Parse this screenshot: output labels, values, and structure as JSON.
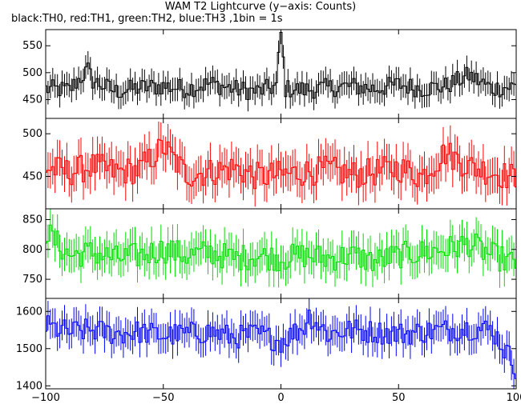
{
  "chart_data": {
    "type": "line",
    "title": "WAM T2 Lightcurve (y−axis: Counts)",
    "subtitle": "black:TH0, red:TH1, green:TH2, blue:TH3 ,1bin = 1s",
    "x_range": [
      -100,
      100
    ],
    "x_ticks": [
      -100,
      -50,
      0,
      50,
      100
    ],
    "bin_seconds": 1,
    "panels": [
      {
        "name": "TH0",
        "color": "#000000",
        "ylim": [
          415,
          580
        ],
        "y_ticks": [
          450,
          500,
          550
        ],
        "x": [
          -100,
          -90,
          -82,
          -80,
          -70,
          -60,
          -50,
          -40,
          -30,
          -20,
          -10,
          -2,
          0,
          2,
          10,
          20,
          30,
          40,
          50,
          60,
          70,
          80,
          90,
          100
        ],
        "values": [
          470,
          468,
          505,
          485,
          465,
          472,
          475,
          470,
          480,
          470,
          465,
          475,
          575,
          470,
          468,
          472,
          475,
          470,
          478,
          470,
          475,
          495,
          470,
          475
        ],
        "errors": [
          22,
          22,
          22,
          22,
          22,
          22,
          22,
          22,
          22,
          22,
          22,
          22,
          22,
          22,
          22,
          22,
          22,
          22,
          22,
          22,
          22,
          22,
          22,
          22
        ]
      },
      {
        "name": "TH1",
        "color": "#ff0000",
        "ylim": [
          412,
          518
        ],
        "y_ticks": [
          450,
          500
        ],
        "x": [
          -100,
          -90,
          -80,
          -70,
          -60,
          -50,
          -40,
          -30,
          -20,
          -10,
          0,
          10,
          20,
          30,
          40,
          50,
          60,
          70,
          80,
          90,
          100
        ],
        "values": [
          460,
          455,
          462,
          455,
          458,
          485,
          452,
          455,
          460,
          450,
          452,
          455,
          458,
          452,
          455,
          460,
          450,
          478,
          462,
          455,
          448
        ],
        "errors": [
          21,
          21,
          21,
          21,
          21,
          21,
          21,
          21,
          21,
          21,
          21,
          21,
          21,
          21,
          21,
          21,
          21,
          21,
          21,
          21,
          21
        ]
      },
      {
        "name": "TH2",
        "color": "#00dd00",
        "ylim": [
          718,
          868
        ],
        "y_ticks": [
          750,
          800,
          850
        ],
        "x": [
          -100,
          -90,
          -80,
          -70,
          -60,
          -50,
          -40,
          -30,
          -20,
          -10,
          0,
          10,
          20,
          30,
          40,
          50,
          60,
          70,
          80,
          90,
          100
        ],
        "values": [
          830,
          790,
          795,
          785,
          790,
          800,
          790,
          795,
          785,
          790,
          785,
          790,
          785,
          790,
          780,
          790,
          795,
          800,
          810,
          790,
          775
        ],
        "errors": [
          28,
          28,
          28,
          28,
          28,
          28,
          28,
          28,
          28,
          28,
          28,
          28,
          28,
          28,
          28,
          28,
          28,
          28,
          28,
          28,
          28
        ]
      },
      {
        "name": "TH3",
        "color": "#0000ff",
        "ylim": [
          1392,
          1635
        ],
        "y_ticks": [
          1400,
          1500,
          1600
        ],
        "x": [
          -100,
          -90,
          -80,
          -70,
          -60,
          -50,
          -40,
          -30,
          -20,
          -10,
          0,
          10,
          12,
          20,
          30,
          40,
          50,
          60,
          70,
          80,
          90,
          100
        ],
        "values": [
          1560,
          1545,
          1550,
          1540,
          1545,
          1535,
          1540,
          1545,
          1530,
          1540,
          1520,
          1560,
          1590,
          1540,
          1550,
          1545,
          1540,
          1545,
          1550,
          1555,
          1550,
          1450
        ],
        "errors": [
          40,
          40,
          40,
          40,
          40,
          40,
          40,
          40,
          40,
          40,
          40,
          40,
          40,
          40,
          40,
          40,
          40,
          40,
          40,
          40,
          40,
          40
        ]
      }
    ]
  }
}
